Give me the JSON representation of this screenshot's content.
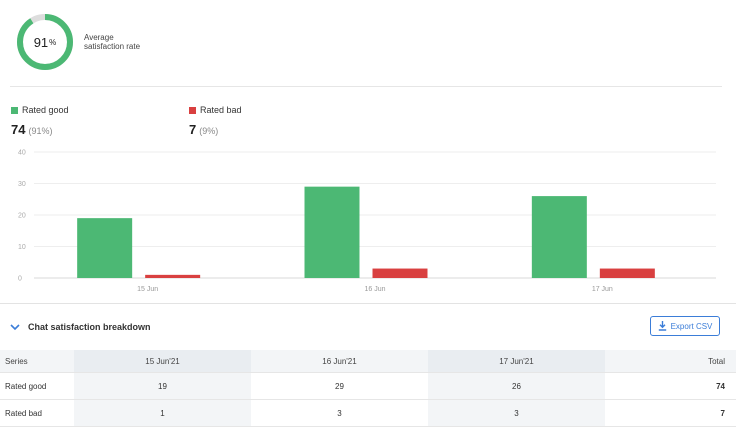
{
  "summary": {
    "percent": 91,
    "percent_unit": "%",
    "label": "Average satisfaction rate",
    "good_color": "#4cb874",
    "track_color": "#dddddd"
  },
  "legend": {
    "good": {
      "label": "Rated good",
      "count": "74",
      "pct": "(91%)",
      "color": "#4cb874"
    },
    "bad": {
      "label": "Rated bad",
      "count": "7",
      "pct": "(9%)",
      "color": "#d94040"
    }
  },
  "chart_data": {
    "type": "bar",
    "categories": [
      "15 Jun",
      "16 Jun",
      "17 Jun"
    ],
    "series": [
      {
        "name": "Rated good",
        "values": [
          19,
          29,
          26
        ],
        "color": "#4cb874"
      },
      {
        "name": "Rated bad",
        "values": [
          1,
          3,
          3
        ],
        "color": "#d94040"
      }
    ],
    "yticks": [
      0,
      10,
      20,
      30,
      40
    ],
    "ylim": [
      0,
      40
    ],
    "grid": true
  },
  "breakdown": {
    "title": "Chat satisfaction breakdown",
    "export_label": "Export CSV",
    "headers": [
      "Series",
      "15 Jun'21",
      "16 Jun'21",
      "17 Jun'21",
      "Total"
    ],
    "rows": [
      {
        "series": "Rated good",
        "values": [
          "19",
          "29",
          "26"
        ],
        "total": "74"
      },
      {
        "series": "Rated bad",
        "values": [
          "1",
          "3",
          "3"
        ],
        "total": "7"
      }
    ]
  }
}
